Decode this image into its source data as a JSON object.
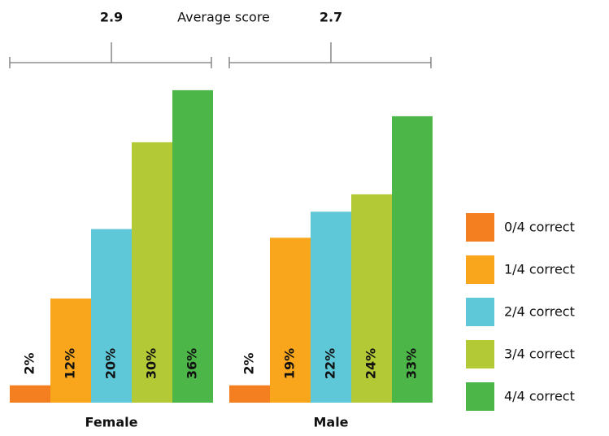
{
  "chart_data": {
    "type": "bar",
    "categories": [
      "Female",
      "Male"
    ],
    "series": [
      {
        "name": "0/4 correct",
        "color": "#f47f20",
        "values": [
          2,
          2
        ],
        "value_labels": [
          "2%",
          "2%"
        ]
      },
      {
        "name": "1/4 correct",
        "color": "#f9a61c",
        "values": [
          12,
          19
        ],
        "value_labels": [
          "12%",
          "19%"
        ]
      },
      {
        "name": "2/4 correct",
        "color": "#5ec8d8",
        "values": [
          20,
          22
        ],
        "value_labels": [
          "20%",
          "22%"
        ]
      },
      {
        "name": "3/4 correct",
        "color": "#b3c935",
        "values": [
          30,
          24
        ],
        "value_labels": [
          "30%",
          "24%"
        ]
      },
      {
        "name": "4/4 correct",
        "color": "#4cb748",
        "values": [
          36,
          33
        ],
        "value_labels": [
          "36%",
          "33%"
        ]
      }
    ],
    "average_score": {
      "label": "Average score",
      "values": [
        2.9,
        2.7
      ]
    }
  }
}
